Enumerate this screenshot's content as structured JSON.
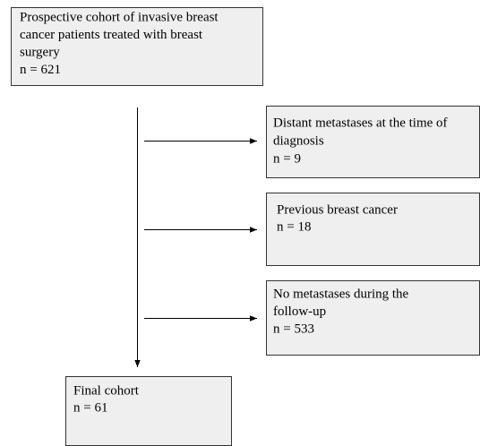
{
  "nodes": [
    {
      "lines": [
        "Prospective cohort of invasive breast",
        "cancer patients treated with breast",
        "surgery",
        "n = 621"
      ]
    },
    {
      "lines": [
        "Distant metastases at the time of",
        "diagnosis",
        "n = 9"
      ]
    },
    {
      "lines": [
        "Previous breast cancer",
        "n = 18"
      ]
    },
    {
      "lines": [
        "No metastases during the",
        "follow-up",
        "n = 533"
      ]
    },
    {
      "lines": [
        "Final cohort",
        "n = 61"
      ]
    }
  ]
}
